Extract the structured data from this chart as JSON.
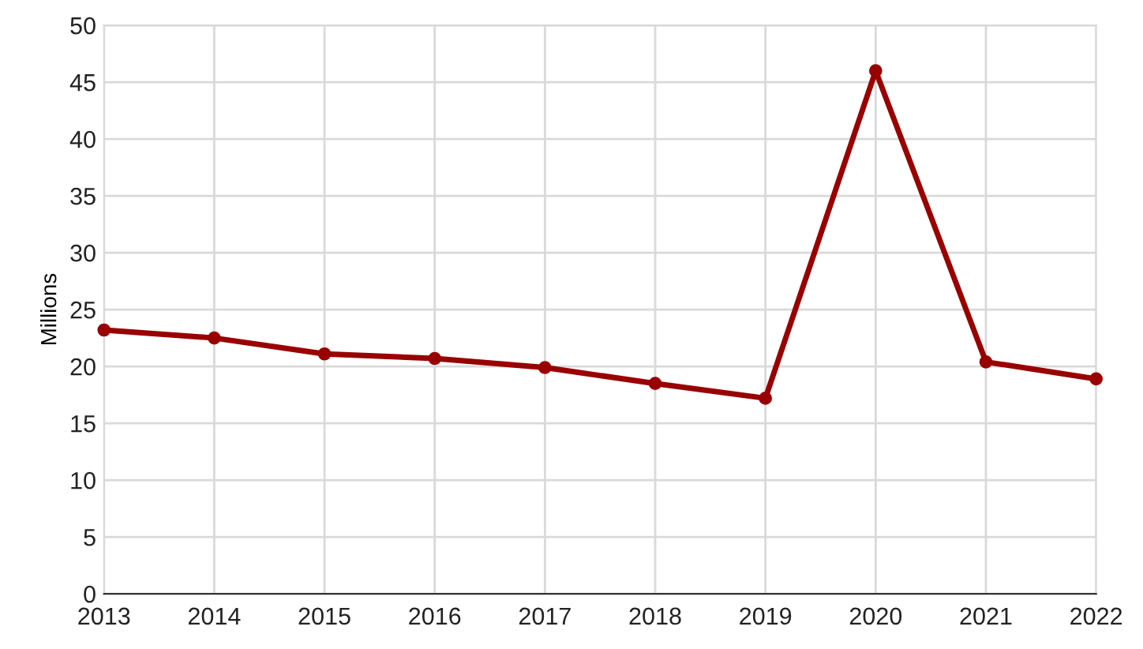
{
  "chart_data": {
    "type": "line",
    "ylabel": "Millions",
    "x": [
      2013,
      2014,
      2015,
      2016,
      2017,
      2018,
      2019,
      2020,
      2021,
      2022
    ],
    "series": [
      {
        "color": "#990000",
        "values": [
          23.2,
          22.5,
          21.1,
          20.7,
          19.9,
          18.5,
          17.2,
          46.0,
          20.4,
          18.9
        ]
      }
    ],
    "xlim": [
      2013,
      2022
    ],
    "xticks": [
      2013,
      2014,
      2015,
      2016,
      2017,
      2018,
      2019,
      2020,
      2021,
      2022
    ],
    "ylim": [
      0,
      50
    ],
    "yticks": [
      0,
      5,
      10,
      15,
      20,
      25,
      30,
      35,
      40,
      45,
      50
    ],
    "grid": true,
    "marker": "circle",
    "line_style": "solid",
    "legend": false
  }
}
